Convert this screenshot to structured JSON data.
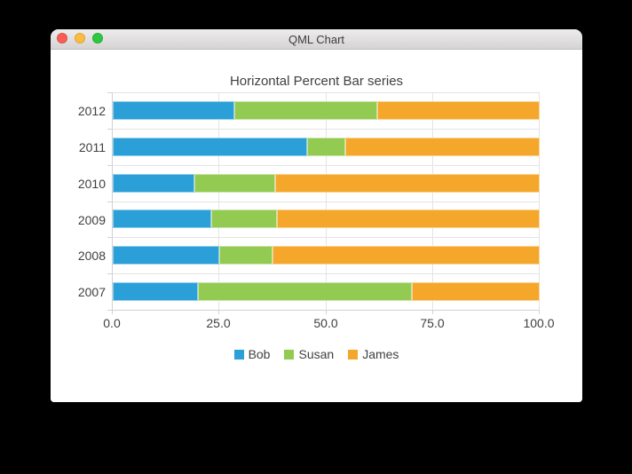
{
  "window": {
    "title": "QML Chart",
    "controls": {
      "close_color": "#f95e56",
      "minimize_color": "#fdbc40",
      "zoom_color": "#2bc840"
    }
  },
  "chart_data": {
    "type": "bar",
    "subtype": "horizontal-percent-stacked",
    "title": "Horizontal Percent Bar series",
    "categories": [
      "2012",
      "2011",
      "2010",
      "2009",
      "2008",
      "2007"
    ],
    "series": [
      {
        "name": "Bob",
        "color": "#2a9fd8",
        "values_percent": [
          28.57,
          45.45,
          19.05,
          23.08,
          25.0,
          20.0
        ]
      },
      {
        "name": "Susan",
        "color": "#93ca52",
        "values_percent": [
          33.33,
          9.09,
          19.05,
          15.38,
          12.5,
          50.0
        ]
      },
      {
        "name": "James",
        "color": "#f4a72b",
        "values_percent": [
          38.1,
          45.45,
          61.9,
          61.54,
          62.5,
          30.0
        ]
      }
    ],
    "xlabel": "",
    "ylabel": "",
    "xlim": [
      0,
      100
    ],
    "x_ticks": [
      "0.0",
      "25.0",
      "50.0",
      "75.0",
      "100.0"
    ],
    "grid": true,
    "legend_position": "bottom"
  }
}
